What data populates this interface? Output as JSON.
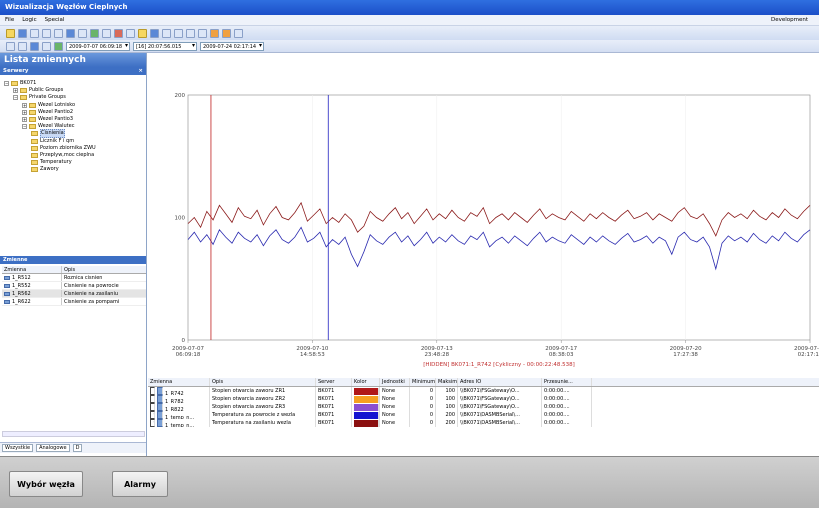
{
  "window": {
    "title": "Wizualizacja Węzłów Cieplnych"
  },
  "menu": {
    "items": [
      "File",
      "Logic",
      "Special"
    ],
    "right": "Development"
  },
  "timebar": {
    "start": "2009-07-07 06:09:18",
    "offset": "[16] 20:07:56.015",
    "end": "2009-07-24 02:17:14"
  },
  "left_panel": {
    "title": "Lista zmiennych",
    "servers_label": "Serwery",
    "close": "×",
    "tree": [
      {
        "label": "BK071",
        "level": 0,
        "pm": "−"
      },
      {
        "label": "Public Groups",
        "level": 1,
        "pm": "+"
      },
      {
        "label": "Private Groups",
        "level": 1,
        "pm": "−"
      },
      {
        "label": "Wezel Lotnisko",
        "level": 2,
        "pm": "+"
      },
      {
        "label": "Wezel Pantio2",
        "level": 2,
        "pm": "+"
      },
      {
        "label": "Wezel Pantio3",
        "level": 2,
        "pm": "+"
      },
      {
        "label": "Wezel Walutec",
        "level": 2,
        "pm": "−"
      },
      {
        "label": "Cisnienia",
        "level": 3,
        "pm": ""
      },
      {
        "label": "Licznik F i qm",
        "level": 3,
        "pm": ""
      },
      {
        "label": "Poziom zbiornika ZWU",
        "level": 3,
        "pm": ""
      },
      {
        "label": "Przeplyw,moc cieplna",
        "level": 3,
        "pm": ""
      },
      {
        "label": "Temperatury",
        "level": 3,
        "pm": ""
      },
      {
        "label": "Zawory",
        "level": 3,
        "pm": ""
      }
    ],
    "vars_label": "Zmienne",
    "vars_headers": [
      "Zmienna",
      "Opis"
    ],
    "vars": [
      {
        "name": "1_R512",
        "desc": "Roznica cisnien"
      },
      {
        "name": "1_R552",
        "desc": "Cisnienie na powrocie"
      },
      {
        "name": "1_R562",
        "desc": "Cisnienie na zasilaniu"
      },
      {
        "name": "1_R622",
        "desc": "Cisnienie za pompami"
      }
    ],
    "tabs": [
      "Wszystkie",
      "Analogowe",
      "D"
    ]
  },
  "chart_data": {
    "type": "line",
    "y_ticks": [
      "200",
      "100",
      "0"
    ],
    "ylim": [
      0,
      200
    ],
    "x_ticks": [
      [
        "2009-07-07",
        "06:09:18"
      ],
      [
        "2009-07-10",
        "14:58:53"
      ],
      [
        "2009-07-13",
        "23:48:28"
      ],
      [
        "2009-07-17",
        "08:38:03"
      ],
      [
        "2009-07-20",
        "17:27:38"
      ],
      [
        "2009-07-24",
        "02:17:14"
      ]
    ],
    "footer": "[HIDDEN] BK071:1_R742 [Cykliczny - 00:00:22:48.538]",
    "cursors": [
      0.0369,
      0.2255
    ],
    "series": [
      {
        "name": "1_temp_n... (powrot)",
        "color": "#8b1a1a",
        "values": [
          95,
          100,
          92,
          105,
          98,
          110,
          103,
          96,
          108,
          101,
          99,
          106,
          94,
          103,
          109,
          100,
          98,
          104,
          112,
          97,
          102,
          107,
          95,
          100,
          96,
          103,
          98,
          88,
          93,
          105,
          100,
          97,
          103,
          108,
          99,
          104,
          95,
          101,
          107,
          98,
          103,
          99,
          106,
          100,
          97,
          104,
          101,
          108,
          95,
          100,
          103,
          98,
          104,
          100,
          96,
          102,
          107,
          99,
          103,
          100,
          98,
          105,
          101,
          97,
          103,
          99,
          104,
          100,
          97,
          102,
          106,
          99,
          101,
          104,
          98,
          103,
          100,
          97,
          104,
          108,
          101,
          99,
          103,
          95,
          85,
          98,
          104,
          100,
          103,
          99,
          106,
          101,
          98,
          104,
          100,
          107,
          102,
          99,
          105,
          110
        ]
      },
      {
        "name": "1_temp_n... (zasilanie)",
        "color": "#2b2bb0",
        "values": [
          82,
          88,
          80,
          86,
          78,
          90,
          84,
          79,
          88,
          83,
          80,
          86,
          77,
          85,
          90,
          82,
          79,
          84,
          92,
          80,
          83,
          88,
          76,
          82,
          78,
          84,
          70,
          60,
          72,
          86,
          81,
          78,
          84,
          88,
          80,
          85,
          77,
          82,
          88,
          79,
          84,
          80,
          86,
          81,
          78,
          85,
          82,
          88,
          76,
          81,
          84,
          79,
          85,
          81,
          77,
          83,
          88,
          80,
          84,
          81,
          79,
          86,
          82,
          78,
          84,
          80,
          85,
          81,
          78,
          83,
          87,
          80,
          82,
          85,
          79,
          84,
          81,
          70,
          84,
          88,
          82,
          80,
          84,
          76,
          58,
          79,
          85,
          81,
          84,
          80,
          87,
          82,
          79,
          85,
          81,
          88,
          83,
          80,
          86,
          90
        ]
      }
    ]
  },
  "bottom_grid": {
    "headers": [
      "Zmienna",
      "Opis",
      "Server",
      "Kolor",
      "Jednostki",
      "Minimum",
      "Maksim...",
      "Adres IO",
      "Przesunie..."
    ],
    "rows": [
      {
        "checked": false,
        "name": "1_R742",
        "desc": "Stopien otwarcia zaworu ZR1",
        "server": "BK071",
        "color": "#b01818",
        "unit": "None",
        "min": "0",
        "max": "100",
        "io": "\\\\BK071\\FSGateway\\O...",
        "shift": "0:00:00...."
      },
      {
        "checked": false,
        "name": "1_R782",
        "desc": "Stopien otwarcia zaworu ZR2",
        "server": "BK071",
        "color": "#f5a020",
        "unit": "None",
        "min": "0",
        "max": "100",
        "io": "\\\\BK071\\FSGateway\\O...",
        "shift": "0:00:00...."
      },
      {
        "checked": false,
        "name": "1_R822",
        "desc": "Stopien otwarcia zaworu ZR3",
        "server": "BK071",
        "color": "#8a4fd0",
        "unit": "None",
        "min": "0",
        "max": "100",
        "io": "\\\\BK071\\FSGateway\\O...",
        "shift": "0:00:00...."
      },
      {
        "checked": true,
        "name": "1_temp_n...",
        "desc": "Temperatura za powrocie z wezla",
        "server": "BK071",
        "color": "#1414d0",
        "unit": "None",
        "min": "0",
        "max": "200",
        "io": "\\\\BK071\\DASMBSerial\\...",
        "shift": "0:00:00...."
      },
      {
        "checked": true,
        "name": "1_temp_n...",
        "desc": "Temperatura na zasilaniu wezla",
        "server": "BK071",
        "color": "#8b1010",
        "unit": "None",
        "min": "0",
        "max": "200",
        "io": "\\\\BK071\\DASMBSerial\\...",
        "shift": "0:00:00...."
      }
    ]
  },
  "buttons": {
    "node_select": "Wybór węzła",
    "alarms": "Alarmy"
  }
}
